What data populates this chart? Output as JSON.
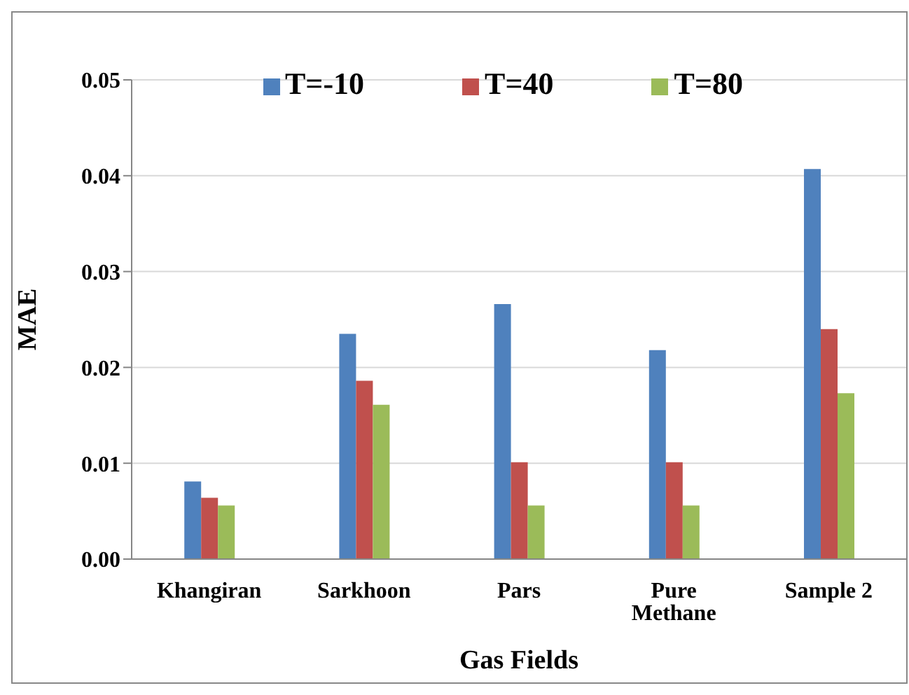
{
  "chart_data": {
    "type": "bar",
    "xlabel": "Gas Fields",
    "ylabel": "MAE",
    "categories": [
      "Khangiran",
      "Sarkhoon",
      "Pars",
      "Pure Methane",
      "Sample 2"
    ],
    "series": [
      {
        "name": "T=-10",
        "color": "#4f81bd",
        "values": [
          0.0081,
          0.0235,
          0.0266,
          0.0218,
          0.0407
        ]
      },
      {
        "name": "T=40",
        "color": "#c0504d",
        "values": [
          0.0064,
          0.0186,
          0.0101,
          0.0101,
          0.024
        ]
      },
      {
        "name": "T=80",
        "color": "#9bbb59",
        "values": [
          0.0056,
          0.0161,
          0.0056,
          0.0056,
          0.0173
        ]
      }
    ],
    "ylim": [
      0,
      0.05
    ],
    "yticks": [
      {
        "value": 0,
        "label": "0.00"
      },
      0.01,
      0.02,
      0.03,
      0.04,
      0.05
    ],
    "grid": "y",
    "legend": "top"
  }
}
